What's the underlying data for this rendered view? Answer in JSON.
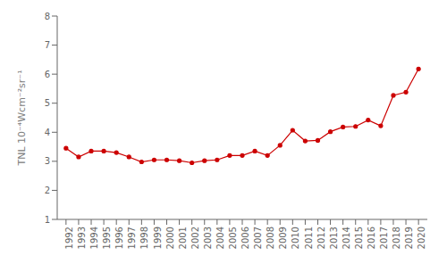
{
  "chart_data": {
    "type": "line",
    "x": [
      1992,
      1993,
      1994,
      1995,
      1996,
      1997,
      1998,
      1999,
      2000,
      2001,
      2002,
      2003,
      2004,
      2005,
      2006,
      2007,
      2008,
      2009,
      2010,
      2011,
      2012,
      2013,
      2014,
      2015,
      2016,
      2017,
      2018,
      2019,
      2020
    ],
    "values": [
      3.45,
      3.15,
      3.35,
      3.35,
      3.3,
      3.15,
      2.98,
      3.05,
      3.05,
      3.02,
      2.95,
      3.02,
      3.05,
      3.2,
      3.2,
      3.35,
      3.2,
      3.55,
      4.07,
      3.7,
      3.72,
      4.02,
      4.18,
      4.2,
      4.42,
      4.22,
      5.27,
      5.38,
      6.18
    ],
    "color": "#cc0000",
    "marker": "circle",
    "line_style": "solid",
    "ylabel": "TNL 10⁻⁴Wcm⁻²sr⁻¹",
    "xlim": [
      1991.3,
      2020.7
    ],
    "xticks": [
      1992,
      1993,
      1994,
      1995,
      1996,
      1997,
      1998,
      1999,
      2000,
      2001,
      2002,
      2003,
      2004,
      2005,
      2006,
      2007,
      2008,
      2009,
      2010,
      2011,
      2012,
      2013,
      2014,
      2015,
      2016,
      2017,
      2018,
      2019,
      2020
    ],
    "ylim": [
      1,
      8
    ],
    "yticks": [
      1,
      2,
      3,
      4,
      5,
      6,
      7,
      8
    ],
    "grid": false
  }
}
